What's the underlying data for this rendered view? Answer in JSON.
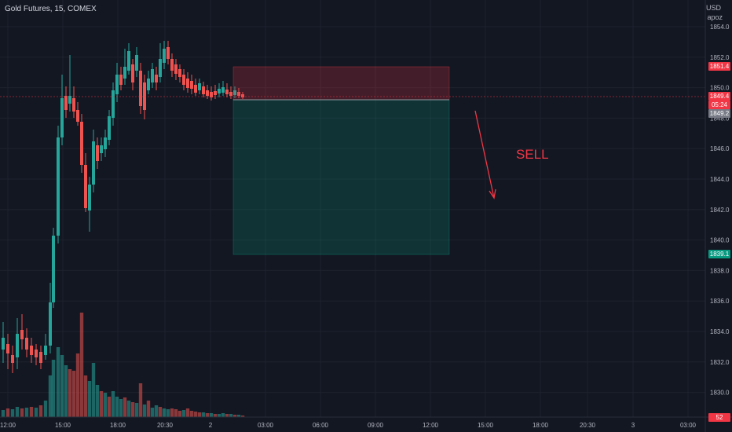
{
  "header": {
    "title": "Gold Futures, 15, COMEX",
    "currency": "USD",
    "currency_sub": "apoz"
  },
  "annotation": {
    "text": "SELL"
  },
  "price_axis": {
    "labels": [
      "1854.0",
      "1852.0",
      "1850.0",
      "1848.0",
      "1846.0",
      "1844.0",
      "1842.0",
      "1840.0",
      "1838.0",
      "1836.0",
      "1834.0",
      "1832.0",
      "1830.0"
    ]
  },
  "time_axis": {
    "labels": [
      "12:00",
      "15:00",
      "18:00",
      "20:30",
      "2",
      "03:00",
      "06:00",
      "09:00",
      "12:00",
      "15:00",
      "18:00",
      "20:30",
      "3",
      "03:00"
    ]
  },
  "tags": {
    "stop": "1851.4",
    "last": "1849.4",
    "countdown": "05:24",
    "bid": "1849.2",
    "target": "1839.1",
    "volume": "52"
  },
  "colors": {
    "bull": "#26a69a",
    "bear": "#ef5350",
    "stop_zone": "#f23645",
    "target_zone": "#089981"
  }
}
